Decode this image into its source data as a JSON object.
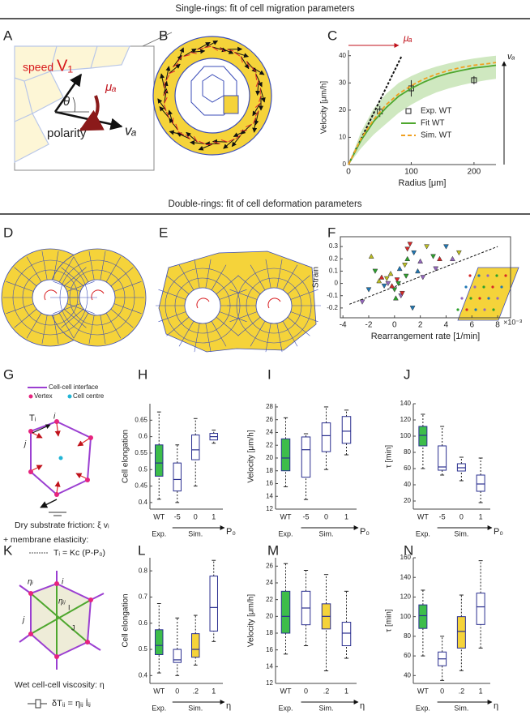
{
  "section_titles": [
    "Single-rings: fit of cell migration parameters",
    "Double-rings: fit of cell deformation parameters"
  ],
  "panel_labels": [
    "A",
    "B",
    "C",
    "D",
    "E",
    "F",
    "G",
    "H",
    "I",
    "J",
    "K",
    "L",
    "M",
    "N"
  ],
  "panel_a": {
    "speed": "speed",
    "velocity": "V₁",
    "angle": "θ",
    "friction": "μₐ",
    "polarity": "polarity",
    "polarity_symbol": "vₐ"
  },
  "panel_g": {
    "legend": [
      "Cell-cell interface",
      "Vertex",
      "Cell centre"
    ],
    "tension": "Tᵢ",
    "vertex_i": "i",
    "vertex_j": "j",
    "friction_text": "Dry substrate friction:  ξ vᵢ",
    "elasticity_text": "+ membrane elasticity:",
    "elasticity_formula": "Tᵢ = Kc (P-P₀)"
  },
  "panel_k": {
    "vertex_i": "i",
    "vertex_j": "j",
    "cell_i": "I",
    "cell_j": "J",
    "edge_eta": "ηᵢ",
    "eta_ij": "ηᵢⱼ",
    "viscosity_text": "Wet cell-cell viscosity: η",
    "formula": "δTᵢⱼ = ηᵢⱼ l̇ᵢⱼ"
  },
  "chart_data": [
    {
      "type": "line",
      "xlabel": "Radius [μm]",
      "ylabel": "Velocity [μm/h]",
      "xlim": [
        0,
        235
      ],
      "ylim": [
        0,
        42
      ],
      "xticks": [
        0,
        100,
        200
      ],
      "yticks": [
        0,
        10,
        20,
        30,
        40
      ],
      "annotations": {
        "friction": "μₐ",
        "polarity": "vₐ"
      },
      "tangent": {
        "x": [
          0,
          85
        ],
        "values": [
          0,
          40
        ]
      },
      "band": {
        "color": "#cfe8c0",
        "x": [
          0,
          20,
          40,
          60,
          80,
          100,
          120,
          140,
          160,
          180,
          200,
          220,
          235
        ],
        "lower": [
          0,
          6,
          11,
          15,
          19,
          22,
          24.5,
          26.5,
          28,
          29.2,
          30.2,
          31,
          31.5
        ],
        "upper": [
          0,
          12,
          20.5,
          26,
          30,
          32.5,
          34.5,
          36,
          37.2,
          38.2,
          39,
          39.6,
          40
        ]
      },
      "series": [
        {
          "name": "Exp. WT",
          "color": "#222222",
          "x": [
            50,
            100,
            200
          ],
          "values": [
            19.5,
            28,
            31
          ],
          "errors": [
            2,
            3,
            1.5
          ]
        },
        {
          "name": "Fit WT",
          "color": "#4ea72e",
          "x": [
            0,
            20,
            40,
            60,
            80,
            100,
            120,
            140,
            160,
            180,
            200,
            220,
            235
          ],
          "values": [
            0,
            8.9,
            15.8,
            20.9,
            25.1,
            28,
            30.3,
            32.2,
            33.6,
            34.6,
            35.5,
            36,
            36.5
          ]
        },
        {
          "name": "Sim. WT",
          "color": "#f0a020",
          "x": [
            0,
            20,
            40,
            60,
            80,
            100,
            120,
            140,
            160,
            180,
            200,
            220,
            235
          ],
          "values": [
            0,
            9.5,
            16.5,
            22,
            26,
            29,
            31.4,
            33.2,
            34.6,
            35.7,
            36.5,
            37,
            37.5
          ]
        }
      ]
    },
    {
      "type": "scatter",
      "xlabel": "Rearrangement rate [1/min]",
      "ylabel": "Strain",
      "x_offset_label": "×10⁻³",
      "xlim": [
        -4.2,
        9
      ],
      "ylim": [
        -0.28,
        0.38
      ],
      "xticks": [
        -4,
        -2,
        0,
        2,
        4,
        6,
        8
      ],
      "yticks": [
        -0.2,
        -0.1,
        0,
        0.1,
        0.2,
        0.3
      ],
      "x": [
        -1.5,
        -1,
        -0.8,
        -0.5,
        -0.3,
        0,
        0.2,
        0.4,
        0.5,
        0.8,
        1,
        1.2,
        1.5,
        2,
        2.5,
        3,
        3.5,
        -2,
        -2.5,
        -1.2,
        0.3,
        0.6,
        1.8,
        2.2,
        -0.6,
        0.1,
        1,
        4,
        4.5,
        5,
        0.9,
        -0.2,
        1.4,
        3.2,
        -1.8
      ],
      "values": [
        0.1,
        0.05,
        -0.02,
        0,
        0.08,
        -0.05,
        0.03,
        0.12,
        -0.1,
        0.15,
        0.2,
        0.32,
        0.25,
        0.18,
        0.3,
        0.22,
        0.2,
        -0.05,
        -0.15,
        0.02,
        0,
        -0.08,
        0.1,
        0.05,
        0.04,
        -0.12,
        0.28,
        0.3,
        0.2,
        0.25,
        0.06,
        -0.02,
        -0.2,
        0.12,
        0.22
      ],
      "colors": [
        "#2ca02c",
        "#d62728",
        "#1f77b4",
        "#9467bd",
        "#bcbd22",
        "#2ca02c",
        "#d62728",
        "#1f77b4",
        "#9467bd",
        "#bcbd22",
        "#2ca02c",
        "#d62728",
        "#1f77b4",
        "#9467bd",
        "#bcbd22",
        "#2ca02c",
        "#d62728",
        "#1f77b4",
        "#9467bd",
        "#bcbd22",
        "#2ca02c",
        "#d62728",
        "#1f77b4",
        "#9467bd",
        "#bcbd22",
        "#2ca02c",
        "#d62728",
        "#1f77b4",
        "#9467bd",
        "#bcbd22",
        "#2ca02c",
        "#d62728",
        "#1f77b4",
        "#9467bd",
        "#bcbd22"
      ],
      "trend": {
        "x": [
          -3.5,
          8
        ],
        "values": [
          -0.17,
          0.3
        ]
      }
    },
    {
      "type": "box",
      "ylabel": "Cell elongation",
      "categories": [
        "WT",
        "-5",
        "0",
        "1"
      ],
      "group_labels": [
        "Exp.",
        "Sim."
      ],
      "parameter": "P₀",
      "ylim": [
        0.38,
        0.7
      ],
      "yticks": [
        0.4,
        0.45,
        0.5,
        0.55,
        0.6,
        0.65
      ],
      "colors": [
        "#3dbd4a",
        "#ffffff",
        "#ffffff",
        "#ffffff"
      ],
      "boxes": [
        {
          "low": 0.41,
          "q1": 0.48,
          "median": 0.52,
          "q3": 0.575,
          "high": 0.675
        },
        {
          "low": 0.4,
          "q1": 0.435,
          "median": 0.47,
          "q3": 0.52,
          "high": 0.575
        },
        {
          "low": 0.45,
          "q1": 0.53,
          "median": 0.56,
          "q3": 0.605,
          "high": 0.655
        },
        {
          "low": 0.58,
          "q1": 0.59,
          "median": 0.6,
          "q3": 0.61,
          "high": 0.62
        }
      ]
    },
    {
      "type": "box",
      "ylabel": "Velocity [μm/h]",
      "categories": [
        "WT",
        "-5",
        "0",
        "1"
      ],
      "group_labels": [
        "Exp.",
        "Sim."
      ],
      "parameter": "P₀",
      "ylim": [
        12,
        28.5
      ],
      "yticks": [
        12,
        14,
        16,
        18,
        20,
        22,
        24,
        26,
        28
      ],
      "colors": [
        "#3dbd4a",
        "#ffffff",
        "#ffffff",
        "#ffffff"
      ],
      "boxes": [
        {
          "low": 15.5,
          "q1": 18,
          "median": 20,
          "q3": 23,
          "high": 26.3
        },
        {
          "low": 13.5,
          "q1": 17,
          "median": 21.3,
          "q3": 23.3,
          "high": 23.8
        },
        {
          "low": 18.2,
          "q1": 21,
          "median": 23.5,
          "q3": 25.5,
          "high": 28
        },
        {
          "low": 20.5,
          "q1": 22.3,
          "median": 24.2,
          "q3": 26.5,
          "high": 27.5
        }
      ]
    },
    {
      "type": "box",
      "ylabel": "τ [min]",
      "categories": [
        "WT",
        "-5",
        "0",
        "1"
      ],
      "group_labels": [
        "Exp.",
        "Sim."
      ],
      "parameter": "P₀",
      "ylim": [
        10,
        140
      ],
      "yticks": [
        20,
        40,
        60,
        80,
        100,
        120,
        140
      ],
      "colors": [
        "#3dbd4a",
        "#ffffff",
        "#ffffff",
        "#ffffff"
      ],
      "boxes": [
        {
          "low": 60,
          "q1": 88,
          "median": 101,
          "q3": 112,
          "high": 127
        },
        {
          "low": 52,
          "q1": 58,
          "median": 62,
          "q3": 88,
          "high": 112
        },
        {
          "low": 45,
          "q1": 57,
          "median": 61,
          "q3": 66,
          "high": 74
        },
        {
          "low": 18,
          "q1": 32,
          "median": 41,
          "q3": 52,
          "high": 73
        }
      ]
    },
    {
      "type": "box",
      "ylabel": "Cell elongation",
      "categories": [
        "WT",
        "0",
        ".2",
        "1"
      ],
      "group_labels": [
        "Exp.",
        "Sim."
      ],
      "parameter": "η",
      "ylim": [
        0.37,
        0.85
      ],
      "yticks": [
        0.4,
        0.5,
        0.6,
        0.7,
        0.8
      ],
      "colors": [
        "#3dbd4a",
        "#ffffff",
        "#f5d33a",
        "#ffffff"
      ],
      "boxes": [
        {
          "low": 0.41,
          "q1": 0.48,
          "median": 0.515,
          "q3": 0.575,
          "high": 0.675
        },
        {
          "low": 0.4,
          "q1": 0.45,
          "median": 0.46,
          "q3": 0.5,
          "high": 0.62
        },
        {
          "low": 0.44,
          "q1": 0.47,
          "median": 0.5,
          "q3": 0.56,
          "high": 0.63
        },
        {
          "low": 0.53,
          "q1": 0.57,
          "median": 0.66,
          "q3": 0.78,
          "high": 0.84
        }
      ]
    },
    {
      "type": "box",
      "ylabel": "Velocity [μm/h]",
      "categories": [
        "WT",
        "0",
        ".2",
        "1"
      ],
      "group_labels": [
        "Exp.",
        "Sim."
      ],
      "parameter": "η",
      "ylim": [
        12,
        27
      ],
      "yticks": [
        12,
        14,
        16,
        18,
        20,
        22,
        24,
        26
      ],
      "colors": [
        "#3dbd4a",
        "#ffffff",
        "#f5d33a",
        "#ffffff"
      ],
      "boxes": [
        {
          "low": 15.5,
          "q1": 18,
          "median": 20,
          "q3": 23,
          "high": 26.3
        },
        {
          "low": 16.5,
          "q1": 19,
          "median": 21,
          "q3": 23,
          "high": 25.5
        },
        {
          "low": 13.5,
          "q1": 18.5,
          "median": 20,
          "q3": 21.5,
          "high": 25
        },
        {
          "low": 15,
          "q1": 16.5,
          "median": 18,
          "q3": 19.3,
          "high": 23
        }
      ]
    },
    {
      "type": "box",
      "ylabel": "τ [min]",
      "categories": [
        "WT",
        "0",
        ".2",
        "1"
      ],
      "group_labels": [
        "Exp.",
        "Sim."
      ],
      "parameter": "η",
      "ylim": [
        32,
        160
      ],
      "yticks": [
        40,
        60,
        80,
        100,
        120,
        140,
        160
      ],
      "colors": [
        "#3dbd4a",
        "#ffffff",
        "#f5d33a",
        "#ffffff"
      ],
      "boxes": [
        {
          "low": 60,
          "q1": 88,
          "median": 101,
          "q3": 112,
          "high": 127
        },
        {
          "low": 35,
          "q1": 50,
          "median": 57,
          "q3": 64,
          "high": 80
        },
        {
          "low": 45,
          "q1": 68,
          "median": 85,
          "q3": 100,
          "high": 122
        },
        {
          "low": 68,
          "q1": 92,
          "median": 110,
          "q3": 124,
          "high": 157
        }
      ]
    }
  ]
}
